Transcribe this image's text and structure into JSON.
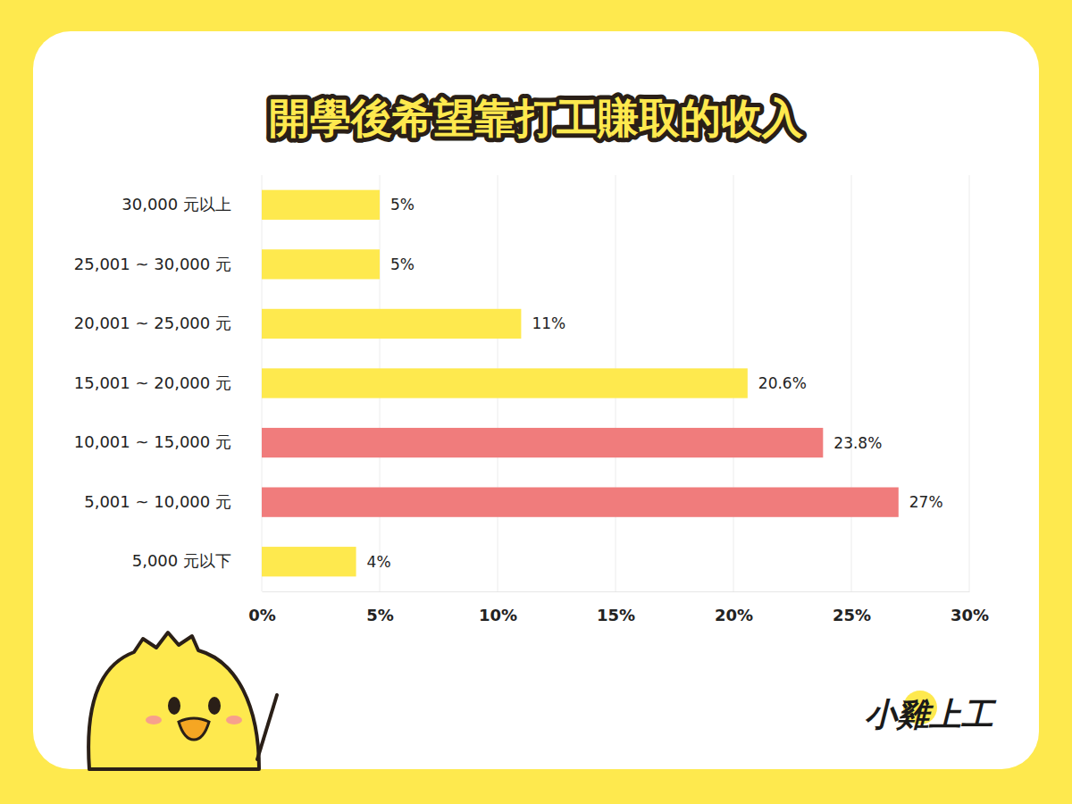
{
  "chart_data": {
    "type": "bar",
    "title": "開學後希望靠打工賺取的收入",
    "orientation": "horizontal",
    "categories": [
      "30,000 元以上",
      "25,001 ~ 30,000 元",
      "20,001 ~ 25,000 元",
      "15,001 ~ 20,000 元",
      "10,001 ~ 15,000 元",
      "5,001 ~ 10,000 元",
      "5,000 元以下"
    ],
    "values": [
      5,
      5,
      11,
      20.6,
      23.8,
      27,
      4
    ],
    "value_labels": [
      "5%",
      "5%",
      "11%",
      "20.6%",
      "23.8%",
      "27%",
      "4%"
    ],
    "colors": [
      "#FEE94E",
      "#FEE94E",
      "#FEE94E",
      "#FEE94E",
      "#F07C7C",
      "#F07C7C",
      "#FEE94E"
    ],
    "xlim": [
      0,
      30
    ],
    "xticks": [
      {
        "value": 0,
        "label": "0%"
      },
      {
        "value": 5,
        "label": "5%"
      },
      {
        "value": 10,
        "label": "10%"
      },
      {
        "value": 15,
        "label": "15%"
      },
      {
        "value": 20,
        "label": "20%"
      },
      {
        "value": 25,
        "label": "25%"
      },
      {
        "value": 30,
        "label": "30%"
      }
    ],
    "grid": true,
    "data_labels": true
  },
  "logo": {
    "text": "小雞上工"
  }
}
